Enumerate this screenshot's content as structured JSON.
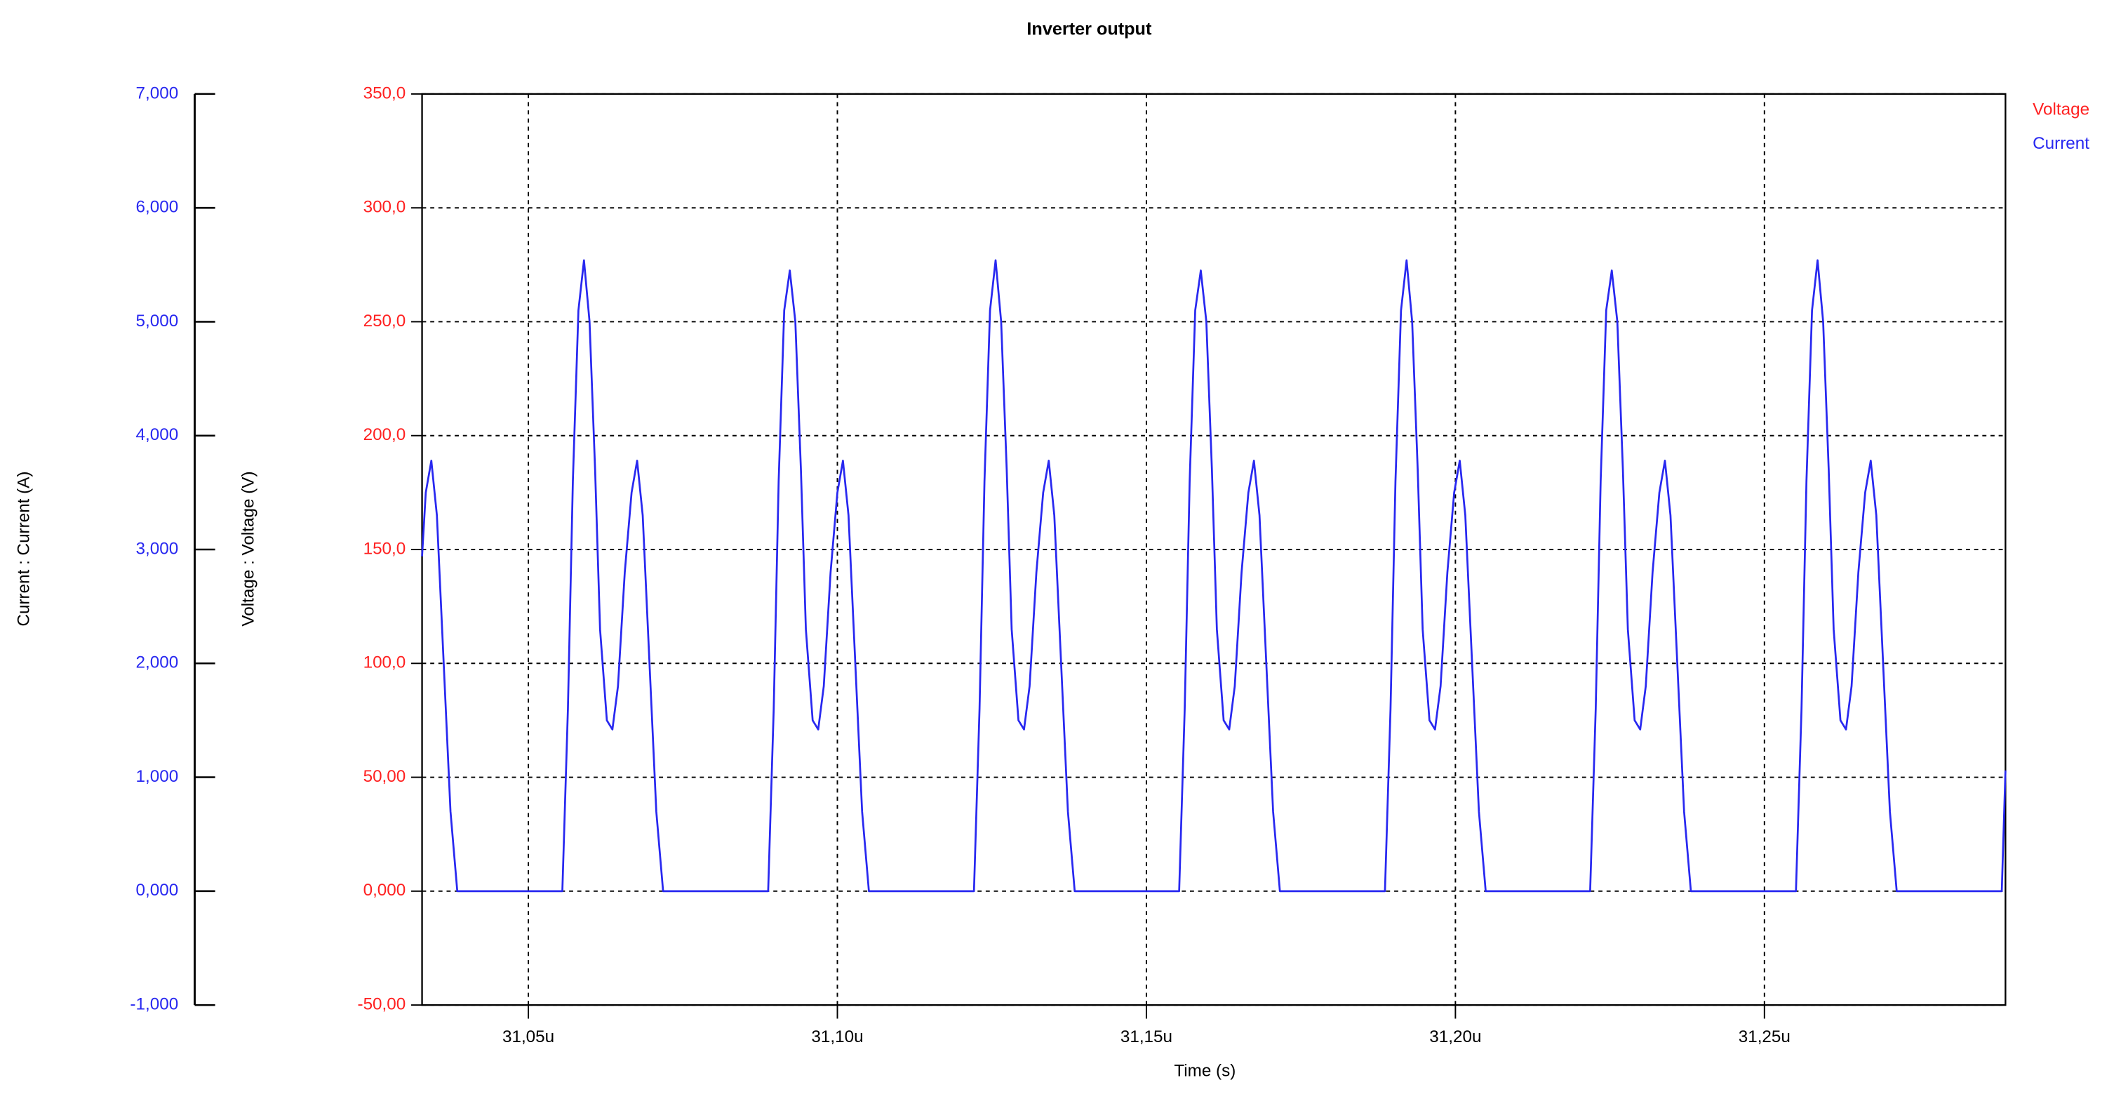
{
  "chart_data": {
    "type": "line",
    "title": "Inverter output",
    "xlabel": "Time (s)",
    "ylabel": "Voltage : Voltage (V)",
    "y2label": "Current : Current (A)",
    "grid": true,
    "legend": "top-right",
    "xlim": [
      31.0328,
      31.289
    ],
    "xticks": [
      {
        "value": 31.05,
        "label": "31,05u"
      },
      {
        "value": 31.1,
        "label": "31,10u"
      },
      {
        "value": 31.15,
        "label": "31,15u"
      },
      {
        "value": 31.2,
        "label": "31,20u"
      },
      {
        "value": 31.25,
        "label": "31,25u"
      }
    ],
    "ylim": [
      -50,
      350
    ],
    "yticks": [
      {
        "value": -50,
        "label": "-50,00"
      },
      {
        "value": 0,
        "label": "0,000"
      },
      {
        "value": 50,
        "label": "50,00"
      },
      {
        "value": 100,
        "label": "100,0"
      },
      {
        "value": 150,
        "label": "150,0"
      },
      {
        "value": 200,
        "label": "200,0"
      },
      {
        "value": 250,
        "label": "250,0"
      },
      {
        "value": 300,
        "label": "300,0"
      },
      {
        "value": 350,
        "label": "350,0"
      }
    ],
    "y2lim": [
      -1,
      7
    ],
    "y2ticks": [
      {
        "value": -1,
        "label": "-1,000"
      },
      {
        "value": 0,
        "label": "0,000"
      },
      {
        "value": 1,
        "label": "1,000"
      },
      {
        "value": 2,
        "label": "2,000"
      },
      {
        "value": 3,
        "label": "3,000"
      },
      {
        "value": 4,
        "label": "4,000"
      },
      {
        "value": 5,
        "label": "5,000"
      },
      {
        "value": 6,
        "label": "6,000"
      },
      {
        "value": 7,
        "label": "7,000"
      }
    ],
    "x": [
      31.0328,
      31.0334,
      31.0343,
      31.0352,
      31.0363,
      31.0374,
      31.0385,
      31.0555,
      31.0564,
      31.0572,
      31.0581,
      31.059,
      31.0599,
      31.0608,
      31.0616,
      31.0627,
      31.0636,
      31.0645,
      31.0656,
      31.0667,
      31.0676,
      31.0685,
      31.0696,
      31.0707,
      31.0718,
      31.0888,
      31.0897,
      31.0905,
      31.0914,
      31.0923,
      31.0932,
      31.0941,
      31.0949,
      31.096,
      31.0969,
      31.0978,
      31.0989,
      31.1,
      31.1009,
      31.1018,
      31.1029,
      31.104,
      31.1051,
      31.1221,
      31.123,
      31.1238,
      31.1247,
      31.1256,
      31.1265,
      31.1274,
      31.1282,
      31.1293,
      31.1302,
      31.1311,
      31.1322,
      31.1333,
      31.1342,
      31.1351,
      31.1362,
      31.1373,
      31.1384,
      31.1553,
      31.1562,
      31.157,
      31.1579,
      31.1588,
      31.1597,
      31.1606,
      31.1614,
      31.1625,
      31.1634,
      31.1643,
      31.1654,
      31.1665,
      31.1674,
      31.1683,
      31.1694,
      31.1705,
      31.1716,
      31.1886,
      31.1895,
      31.1903,
      31.1912,
      31.1921,
      31.193,
      31.1939,
      31.1947,
      31.1958,
      31.1967,
      31.1976,
      31.1987,
      31.1998,
      31.2007,
      31.2016,
      31.2027,
      31.2038,
      31.2049,
      31.2218,
      31.2227,
      31.2235,
      31.2244,
      31.2253,
      31.2262,
      31.2271,
      31.2279,
      31.229,
      31.2299,
      31.2308,
      31.2319,
      31.233,
      31.2339,
      31.2348,
      31.2359,
      31.237,
      31.2381,
      31.2551,
      31.256,
      31.2568,
      31.2577,
      31.2586,
      31.2595,
      31.2604,
      31.2612,
      31.2623,
      31.2632,
      31.2641,
      31.2652,
      31.2663,
      31.2672,
      31.2681,
      31.2692,
      31.2703,
      31.2714,
      31.2884,
      31.289
    ],
    "series": [
      {
        "name": "Voltage",
        "color": "#ff2020",
        "values": [
          null,
          null,
          null,
          null,
          null,
          null,
          null,
          null,
          null,
          null,
          null,
          null,
          null,
          null,
          null,
          null,
          null,
          null,
          null,
          null,
          null,
          null,
          null,
          null,
          null,
          null,
          null,
          null,
          null,
          null,
          null,
          null,
          null,
          null,
          null,
          null,
          null,
          null,
          null,
          null,
          null,
          null,
          null,
          null,
          null,
          null,
          null,
          null,
          null,
          null,
          null,
          null,
          null,
          null,
          null,
          null,
          null,
          null,
          null,
          null,
          null,
          null,
          null,
          null,
          null,
          null,
          null,
          null,
          null,
          null,
          null,
          null,
          null,
          null,
          null,
          null,
          null,
          null,
          null,
          null,
          null,
          null,
          null,
          null,
          null,
          null,
          null,
          null,
          null,
          null,
          null,
          null,
          null,
          null,
          null,
          null,
          null,
          null,
          null,
          null,
          null,
          null,
          null,
          null,
          null,
          null,
          null,
          null,
          null,
          null,
          null,
          null,
          null,
          null,
          null,
          null,
          null,
          null,
          null,
          null,
          null,
          null,
          null,
          null,
          null,
          null,
          null,
          null,
          null,
          null,
          null,
          null,
          null,
          null,
          null
        ]
      },
      {
        "name": "Current",
        "color": "#2828f0",
        "axis": "y2",
        "values": [
          2.94,
          3.5,
          3.78,
          3.3,
          2.0,
          0.7,
          0,
          0,
          1.6,
          3.6,
          5.1,
          5.54,
          5.0,
          3.7,
          2.3,
          1.5,
          1.42,
          1.8,
          2.8,
          3.5,
          3.78,
          3.3,
          2.0,
          0.7,
          0,
          0,
          1.6,
          3.6,
          5.1,
          5.45,
          5.0,
          3.7,
          2.3,
          1.5,
          1.42,
          1.8,
          2.8,
          3.5,
          3.78,
          3.3,
          2.0,
          0.7,
          0,
          0,
          1.6,
          3.6,
          5.1,
          5.54,
          5.0,
          3.7,
          2.3,
          1.5,
          1.42,
          1.8,
          2.8,
          3.5,
          3.78,
          3.3,
          2.0,
          0.7,
          0,
          0,
          1.6,
          3.6,
          5.1,
          5.45,
          5.0,
          3.7,
          2.3,
          1.5,
          1.42,
          1.8,
          2.8,
          3.5,
          3.78,
          3.3,
          2.0,
          0.7,
          0,
          0,
          1.6,
          3.6,
          5.1,
          5.54,
          5.0,
          3.7,
          2.3,
          1.5,
          1.42,
          1.8,
          2.8,
          3.5,
          3.78,
          3.3,
          2.0,
          0.7,
          0,
          0,
          1.6,
          3.6,
          5.1,
          5.45,
          5.0,
          3.7,
          2.3,
          1.5,
          1.42,
          1.8,
          2.8,
          3.5,
          3.78,
          3.3,
          2.0,
          0.7,
          0,
          0,
          1.6,
          3.6,
          5.1,
          5.54,
          5.0,
          3.7,
          2.3,
          1.5,
          1.42,
          1.8,
          2.8,
          3.5,
          3.78,
          3.3,
          2.0,
          0.7,
          0,
          0,
          1.06
        ]
      }
    ]
  }
}
